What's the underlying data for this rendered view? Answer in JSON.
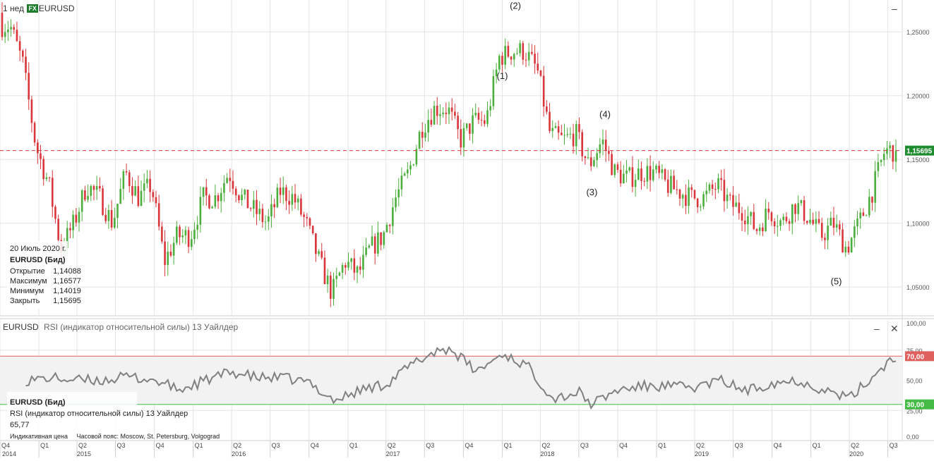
{
  "header": {
    "interval": "1 нед",
    "badge": "FX",
    "symbol": "EURUSD",
    "minimize": "–"
  },
  "rsi_header": {
    "symbol": "EURUSD",
    "title": "RSI (индикатор относительной силы) 13 Уайлдер",
    "minimize": "–",
    "close": "✕"
  },
  "price_info": {
    "date": "20 Июль 2020 г.",
    "name": "EURUSD (Бид)",
    "open_label": "Открытие",
    "open": "1,14088",
    "high_label": "Максимум",
    "high": "1,16577",
    "low_label": "Минимум",
    "low": "1,14019",
    "close_label": "Закрыть",
    "close": "1,15695"
  },
  "rsi_info": {
    "name": "EURUSD (Бид)",
    "title": "RSI (индикатор относительной силы) 13 Уайлдер",
    "value": "65,77",
    "footer": "Индикативная цена     Часовой пояс: Moscow, St. Petersburg, Volgograd"
  },
  "colors": {
    "up": "#4caf3d",
    "down": "#d9353a",
    "rsi_line": "#808080",
    "band": "#f2f2f2",
    "overbought": "#e06060",
    "oversold": "#44bb44",
    "last_price": "#1e8c2e",
    "grid": "#e4e4e4"
  },
  "chart_data": [
    {
      "type": "candlestick",
      "symbol": "EURUSD",
      "interval": "1 нед",
      "y_ticks": [
        "1,05000",
        "1,10000",
        "1,15000",
        "1,20000",
        "1,25000"
      ],
      "y_tick_values": [
        1.05,
        1.1,
        1.15,
        1.2,
        1.25
      ],
      "ylim": [
        1.028,
        1.275
      ],
      "last_price": 1.15695,
      "last_price_label": "1,15695",
      "waypoints": [
        [
          "2014-11",
          1.255
        ],
        [
          "2014-12",
          1.225
        ],
        [
          "2015-01",
          1.16
        ],
        [
          "2015-02",
          1.13
        ],
        [
          "2015-03",
          1.08
        ],
        [
          "2015-04",
          1.1
        ],
        [
          "2015-05",
          1.13
        ],
        [
          "2015-06",
          1.12
        ],
        [
          "2015-07",
          1.1
        ],
        [
          "2015-08",
          1.14
        ],
        [
          "2015-09",
          1.12
        ],
        [
          "2015-10",
          1.13
        ],
        [
          "2015-11",
          1.07
        ],
        [
          "2015-12",
          1.09
        ],
        [
          "2016-01",
          1.09
        ],
        [
          "2016-02",
          1.12
        ],
        [
          "2016-03",
          1.12
        ],
        [
          "2016-04",
          1.14
        ],
        [
          "2016-05",
          1.12
        ],
        [
          "2016-06",
          1.11
        ],
        [
          "2016-07",
          1.1
        ],
        [
          "2016-08",
          1.125
        ],
        [
          "2016-09",
          1.12
        ],
        [
          "2016-10",
          1.1
        ],
        [
          "2016-11",
          1.07
        ],
        [
          "2016-12",
          1.045
        ],
        [
          "2017-01",
          1.07
        ],
        [
          "2017-02",
          1.06
        ],
        [
          "2017-03",
          1.08
        ],
        [
          "2017-04",
          1.09
        ],
        [
          "2017-05",
          1.12
        ],
        [
          "2017-06",
          1.14
        ],
        [
          "2017-07",
          1.175
        ],
        [
          "2017-08",
          1.19
        ],
        [
          "2017-09",
          1.19
        ],
        [
          "2017-10",
          1.165
        ],
        [
          "2017-11",
          1.18
        ],
        [
          "2017-12",
          1.18
        ],
        [
          "2018-01",
          1.23
        ],
        [
          "2018-02",
          1.235
        ],
        [
          "2018-03",
          1.235
        ],
        [
          "2018-04",
          1.22
        ],
        [
          "2018-05",
          1.17
        ],
        [
          "2018-06",
          1.165
        ],
        [
          "2018-07",
          1.17
        ],
        [
          "2018-08",
          1.145
        ],
        [
          "2018-09",
          1.165
        ],
        [
          "2018-10",
          1.14
        ],
        [
          "2018-11",
          1.135
        ],
        [
          "2018-12",
          1.14
        ],
        [
          "2019-01",
          1.14
        ],
        [
          "2019-02",
          1.13
        ],
        [
          "2019-03",
          1.125
        ],
        [
          "2019-04",
          1.12
        ],
        [
          "2019-05",
          1.12
        ],
        [
          "2019-06",
          1.13
        ],
        [
          "2019-07",
          1.115
        ],
        [
          "2019-08",
          1.11
        ],
        [
          "2019-09",
          1.095
        ],
        [
          "2019-10",
          1.11
        ],
        [
          "2019-11",
          1.1
        ],
        [
          "2019-12",
          1.115
        ],
        [
          "2020-01",
          1.105
        ],
        [
          "2020-02",
          1.09
        ],
        [
          "2020-03",
          1.1
        ],
        [
          "2020-04",
          1.08
        ],
        [
          "2020-05",
          1.1
        ],
        [
          "2020-06",
          1.125
        ],
        [
          "2020-07",
          1.157
        ]
      ],
      "annotations": [
        {
          "text": "(1)",
          "date": "2018-01",
          "y": 1.213
        },
        {
          "text": "(2)",
          "date": "2018-02",
          "y": 1.268
        },
        {
          "text": "(3)",
          "date": "2018-08",
          "y": 1.122
        },
        {
          "text": "(4)",
          "date": "2018-09",
          "y": 1.183
        },
        {
          "text": "(5)",
          "date": "2020-03",
          "y": 1.052
        }
      ]
    },
    {
      "type": "line",
      "indicator": "RSI 13 Уайлдер",
      "y_ticks": [
        "0,00",
        "25,00",
        "50,00",
        "75,00",
        "100,00"
      ],
      "y_tick_values": [
        0,
        25,
        50,
        75,
        100
      ],
      "ylim": [
        0,
        100
      ],
      "overbought": 70,
      "overbought_label": "70,00",
      "oversold": 30,
      "oversold_label": "30,00",
      "last_value": 65.77,
      "waypoints": [
        [
          "2014-12",
          50
        ],
        [
          "2015-02",
          52
        ],
        [
          "2015-04",
          50
        ],
        [
          "2015-06",
          50
        ],
        [
          "2015-08",
          53
        ],
        [
          "2015-10",
          50
        ],
        [
          "2015-12",
          42
        ],
        [
          "2016-02",
          50
        ],
        [
          "2016-04",
          57
        ],
        [
          "2016-06",
          52
        ],
        [
          "2016-08",
          52
        ],
        [
          "2016-10",
          48
        ],
        [
          "2016-12",
          33
        ],
        [
          "2017-02",
          42
        ],
        [
          "2017-04",
          47
        ],
        [
          "2017-06",
          63
        ],
        [
          "2017-08",
          75
        ],
        [
          "2017-09",
          76
        ],
        [
          "2017-11",
          57
        ],
        [
          "2018-01",
          72
        ],
        [
          "2018-03",
          62
        ],
        [
          "2018-05",
          35
        ],
        [
          "2018-07",
          40
        ],
        [
          "2018-08",
          30
        ],
        [
          "2018-10",
          42
        ],
        [
          "2018-12",
          45
        ],
        [
          "2019-02",
          45
        ],
        [
          "2019-04",
          44
        ],
        [
          "2019-06",
          50
        ],
        [
          "2019-08",
          41
        ],
        [
          "2019-10",
          48
        ],
        [
          "2019-12",
          50
        ],
        [
          "2020-02",
          42
        ],
        [
          "2020-04",
          35
        ],
        [
          "2020-06",
          55
        ],
        [
          "2020-07",
          65.77
        ]
      ]
    }
  ],
  "time_axis": {
    "quarters": [
      {
        "label": "Q4",
        "date": "2014-10"
      },
      {
        "label": "Q1",
        "date": "2015-01"
      },
      {
        "label": "Q2",
        "date": "2015-04"
      },
      {
        "label": "Q3",
        "date": "2015-07"
      },
      {
        "label": "Q4",
        "date": "2015-10"
      },
      {
        "label": "Q1",
        "date": "2016-01"
      },
      {
        "label": "Q2",
        "date": "2016-04"
      },
      {
        "label": "Q3",
        "date": "2016-07"
      },
      {
        "label": "Q4",
        "date": "2016-10"
      },
      {
        "label": "Q1",
        "date": "2017-01"
      },
      {
        "label": "Q2",
        "date": "2017-04"
      },
      {
        "label": "Q3",
        "date": "2017-07"
      },
      {
        "label": "Q4",
        "date": "2017-10"
      },
      {
        "label": "Q1",
        "date": "2018-01"
      },
      {
        "label": "Q2",
        "date": "2018-04"
      },
      {
        "label": "Q3",
        "date": "2018-07"
      },
      {
        "label": "Q4",
        "date": "2018-10"
      },
      {
        "label": "Q1",
        "date": "2019-01"
      },
      {
        "label": "Q2",
        "date": "2019-04"
      },
      {
        "label": "Q3",
        "date": "2019-07"
      },
      {
        "label": "Q4",
        "date": "2019-10"
      },
      {
        "label": "Q1",
        "date": "2020-01"
      },
      {
        "label": "Q2",
        "date": "2020-04"
      },
      {
        "label": "Q3",
        "date": "2020-07"
      }
    ],
    "years": [
      {
        "label": "2014",
        "date": "2014-10"
      },
      {
        "label": "2015",
        "date": "2015-04"
      },
      {
        "label": "2016",
        "date": "2016-04"
      },
      {
        "label": "2017",
        "date": "2017-04"
      },
      {
        "label": "2018",
        "date": "2018-04"
      },
      {
        "label": "2019",
        "date": "2019-04"
      },
      {
        "label": "2020",
        "date": "2020-04"
      }
    ]
  }
}
